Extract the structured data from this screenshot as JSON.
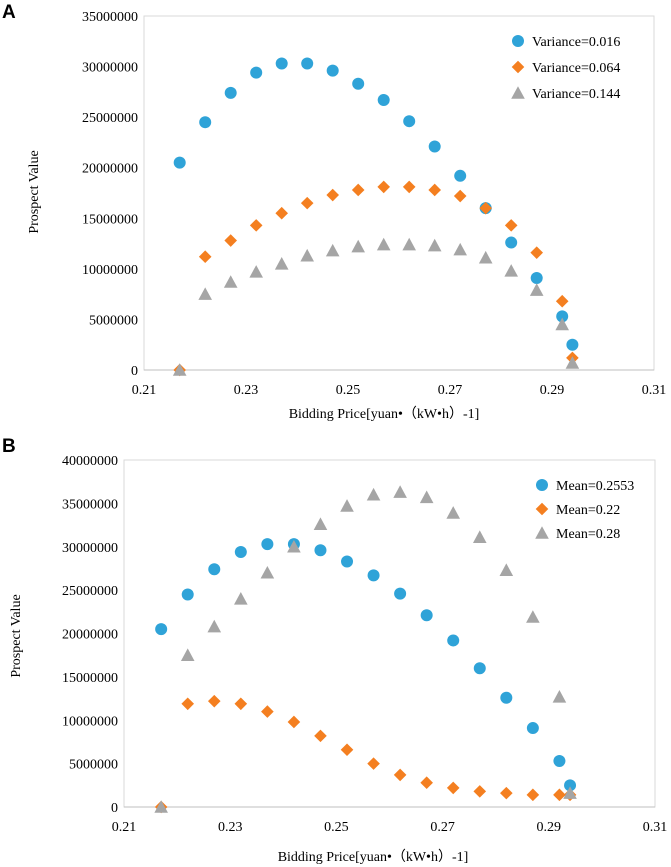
{
  "colors": {
    "blue": "#2fa3d8",
    "orange": "#f47f20",
    "gray": "#a5a5a5"
  },
  "chart_data": [
    {
      "panel_label": "A",
      "type": "scatter",
      "xlabel": "Bidding Price[yuan•（kW•h）-1]",
      "ylabel": "Prospect Value",
      "xlim": [
        0.21,
        0.31
      ],
      "ylim": [
        0,
        35000000
      ],
      "xticks": [
        "0.21",
        "0.23",
        "0.25",
        "0.27",
        "0.29",
        "0.31"
      ],
      "yticks": [
        "0",
        "5000000",
        "10000000",
        "15000000",
        "20000000",
        "25000000",
        "30000000",
        "35000000"
      ],
      "legend_position": "top-right",
      "series": [
        {
          "name": "Variance=0.016",
          "marker": "circle",
          "color": "#2fa3d8",
          "x": [
            0.217,
            0.222,
            0.227,
            0.232,
            0.237,
            0.242,
            0.247,
            0.252,
            0.257,
            0.262,
            0.267,
            0.272,
            0.277,
            0.282,
            0.287,
            0.292,
            0.294
          ],
          "y": [
            20500000,
            24500000,
            27400000,
            29400000,
            30300000,
            30300000,
            29600000,
            28300000,
            26700000,
            24600000,
            22100000,
            19200000,
            16000000,
            12600000,
            9100000,
            5300000,
            2500000
          ]
        },
        {
          "name": "Variance=0.064",
          "marker": "diamond",
          "color": "#f47f20",
          "x": [
            0.217,
            0.222,
            0.227,
            0.232,
            0.237,
            0.242,
            0.247,
            0.252,
            0.257,
            0.262,
            0.267,
            0.272,
            0.277,
            0.282,
            0.287,
            0.292,
            0.294
          ],
          "y": [
            0,
            11200000,
            12800000,
            14300000,
            15500000,
            16500000,
            17300000,
            17800000,
            18100000,
            18100000,
            17800000,
            17200000,
            16000000,
            14300000,
            11600000,
            6800000,
            1200000
          ]
        },
        {
          "name": "Variance=0.144",
          "marker": "triangle",
          "color": "#a5a5a5",
          "x": [
            0.217,
            0.222,
            0.227,
            0.232,
            0.237,
            0.242,
            0.247,
            0.252,
            0.257,
            0.262,
            0.267,
            0.272,
            0.277,
            0.282,
            0.287,
            0.292,
            0.294
          ],
          "y": [
            0,
            7500000,
            8700000,
            9700000,
            10500000,
            11300000,
            11800000,
            12200000,
            12400000,
            12400000,
            12300000,
            11900000,
            11100000,
            9800000,
            7900000,
            4500000,
            700000
          ]
        }
      ]
    },
    {
      "panel_label": "B",
      "type": "scatter",
      "xlabel": "Bidding Price[yuan•（kW•h）-1]",
      "ylabel": "Prospect Value",
      "xlim": [
        0.21,
        0.31
      ],
      "ylim": [
        0,
        40000000
      ],
      "xticks": [
        "0.21",
        "0.23",
        "0.25",
        "0.27",
        "0.29",
        "0.31"
      ],
      "yticks": [
        "0",
        "5000000",
        "10000000",
        "15000000",
        "20000000",
        "25000000",
        "30000000",
        "35000000",
        "40000000"
      ],
      "legend_position": "top-right",
      "series": [
        {
          "name": "Mean=0.2553",
          "marker": "circle",
          "color": "#2fa3d8",
          "x": [
            0.217,
            0.222,
            0.227,
            0.232,
            0.237,
            0.242,
            0.247,
            0.252,
            0.257,
            0.262,
            0.267,
            0.272,
            0.277,
            0.282,
            0.287,
            0.292,
            0.294
          ],
          "y": [
            20500000,
            24500000,
            27400000,
            29400000,
            30300000,
            30300000,
            29600000,
            28300000,
            26700000,
            24600000,
            22100000,
            19200000,
            16000000,
            12600000,
            9100000,
            5300000,
            2500000
          ]
        },
        {
          "name": "Mean=0.22",
          "marker": "diamond",
          "color": "#f47f20",
          "x": [
            0.217,
            0.222,
            0.227,
            0.232,
            0.237,
            0.242,
            0.247,
            0.252,
            0.257,
            0.262,
            0.267,
            0.272,
            0.277,
            0.282,
            0.287,
            0.292,
            0.294
          ],
          "y": [
            0,
            11900000,
            12200000,
            11900000,
            11000000,
            9800000,
            8200000,
            6600000,
            5000000,
            3700000,
            2800000,
            2200000,
            1800000,
            1600000,
            1400000,
            1400000,
            1400000
          ]
        },
        {
          "name": "Mean=0.28",
          "marker": "triangle",
          "color": "#a5a5a5",
          "x": [
            0.217,
            0.222,
            0.227,
            0.232,
            0.237,
            0.242,
            0.247,
            0.252,
            0.257,
            0.262,
            0.267,
            0.272,
            0.277,
            0.282,
            0.287,
            0.292,
            0.294
          ],
          "y": [
            0,
            17500000,
            20800000,
            24000000,
            27000000,
            30000000,
            32600000,
            34700000,
            36000000,
            36300000,
            35700000,
            33900000,
            31100000,
            27300000,
            21900000,
            12700000,
            1600000
          ]
        }
      ]
    }
  ]
}
